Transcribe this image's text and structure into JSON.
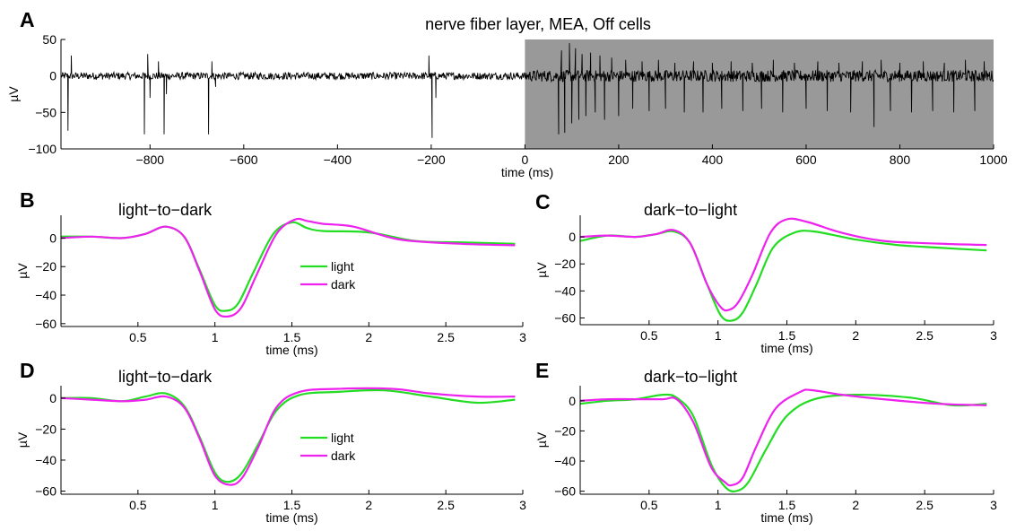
{
  "figure": {
    "chart_data": [
      {
        "panel": "A",
        "type": "line",
        "title": "nerve fiber layer, MEA, Off cells",
        "xlabel": "time (ms)",
        "ylabel": "µV",
        "xlim": [
          -990,
          1000
        ],
        "ylim": [
          -100,
          50
        ],
        "xticks": [
          -800,
          -600,
          -400,
          -200,
          0,
          200,
          400,
          600,
          800,
          1000
        ],
        "yticks": [
          50,
          0,
          -50,
          -100
        ],
        "xtick_labels": [
          "−800",
          "−600",
          "−400",
          "−200",
          "0",
          "200",
          "400",
          "600",
          "800",
          "1000"
        ],
        "ytick_labels": [
          "50",
          "0",
          "−50",
          "−100"
        ],
        "shaded_region": {
          "x": [
            0,
            1000
          ],
          "color": "#999999"
        },
        "line_color": "#000000",
        "noise_amplitude_pre": 5,
        "noise_amplitude_post": 8,
        "spikes": [
          {
            "x": -975,
            "y": -75
          },
          {
            "x": -968,
            "y": 28
          },
          {
            "x": -812,
            "y": -80
          },
          {
            "x": -805,
            "y": 30
          },
          {
            "x": -800,
            "y": -30
          },
          {
            "x": -770,
            "y": -80
          },
          {
            "x": -765,
            "y": -25
          },
          {
            "x": -782,
            "y": 20
          },
          {
            "x": -675,
            "y": -80
          },
          {
            "x": -668,
            "y": 20
          },
          {
            "x": -660,
            "y": -15
          },
          {
            "x": -198,
            "y": -85
          },
          {
            "x": -205,
            "y": 28
          },
          {
            "x": -190,
            "y": -30
          },
          {
            "x": 72,
            "y": -80
          },
          {
            "x": 78,
            "y": 35
          },
          {
            "x": 85,
            "y": -78
          },
          {
            "x": 95,
            "y": 45
          },
          {
            "x": 100,
            "y": -65
          },
          {
            "x": 108,
            "y": 38
          },
          {
            "x": 115,
            "y": -60
          },
          {
            "x": 122,
            "y": 30
          },
          {
            "x": 130,
            "y": -55
          },
          {
            "x": 140,
            "y": 32
          },
          {
            "x": 150,
            "y": -50
          },
          {
            "x": 160,
            "y": 28
          },
          {
            "x": 170,
            "y": -60
          },
          {
            "x": 185,
            "y": 25
          },
          {
            "x": 200,
            "y": -55
          },
          {
            "x": 215,
            "y": 22
          },
          {
            "x": 230,
            "y": -45
          },
          {
            "x": 250,
            "y": 20
          },
          {
            "x": 265,
            "y": -48
          },
          {
            "x": 285,
            "y": 22
          },
          {
            "x": 300,
            "y": -45
          },
          {
            "x": 320,
            "y": 18
          },
          {
            "x": 340,
            "y": -50
          },
          {
            "x": 360,
            "y": 20
          },
          {
            "x": 380,
            "y": -50
          },
          {
            "x": 400,
            "y": 18
          },
          {
            "x": 420,
            "y": -45
          },
          {
            "x": 440,
            "y": 20
          },
          {
            "x": 465,
            "y": -48
          },
          {
            "x": 485,
            "y": 18
          },
          {
            "x": 505,
            "y": -45
          },
          {
            "x": 530,
            "y": 22
          },
          {
            "x": 550,
            "y": -50
          },
          {
            "x": 575,
            "y": 18
          },
          {
            "x": 600,
            "y": -45
          },
          {
            "x": 625,
            "y": 20
          },
          {
            "x": 645,
            "y": -48
          },
          {
            "x": 670,
            "y": 18
          },
          {
            "x": 695,
            "y": -50
          },
          {
            "x": 720,
            "y": 20
          },
          {
            "x": 745,
            "y": -70
          },
          {
            "x": 760,
            "y": 22
          },
          {
            "x": 780,
            "y": -48
          },
          {
            "x": 800,
            "y": 18
          },
          {
            "x": 825,
            "y": -50
          },
          {
            "x": 850,
            "y": 20
          },
          {
            "x": 870,
            "y": -48
          },
          {
            "x": 895,
            "y": 18
          },
          {
            "x": 915,
            "y": -50
          },
          {
            "x": 940,
            "y": 22
          },
          {
            "x": 960,
            "y": -48
          },
          {
            "x": 980,
            "y": 20
          }
        ]
      },
      {
        "panel": "B",
        "type": "line",
        "title": "light−to−dark",
        "xlabel": "time (ms)",
        "ylabel": "µV",
        "xlim": [
          0,
          3
        ],
        "ylim": [
          -62,
          16
        ],
        "xticks": [
          0.5,
          1,
          1.5,
          2,
          2.5,
          3
        ],
        "xtick_labels": [
          "0.5",
          "1",
          "1.5",
          "2",
          "2.5",
          "3"
        ],
        "yticks": [
          0,
          -20,
          -40,
          -60
        ],
        "ytick_labels": [
          "0",
          "−20",
          "−40",
          "−60"
        ],
        "legend": {
          "entries": [
            "light",
            "dark"
          ],
          "placement": "center"
        },
        "series": [
          {
            "name": "light",
            "color": "#22dd22",
            "x": [
              0,
              0.2,
              0.4,
              0.55,
              0.68,
              0.8,
              0.9,
              1.0,
              1.07,
              1.15,
              1.25,
              1.38,
              1.5,
              1.6,
              1.7,
              2.0,
              2.3,
              2.6,
              2.95
            ],
            "y": [
              1,
              1,
              0,
              3,
              8,
              1,
              -22,
              -47,
              -51,
              -46,
              -24,
              3,
              11,
              7,
              5,
              4,
              -2,
              -3,
              -4
            ]
          },
          {
            "name": "dark",
            "color": "#ee22ee",
            "x": [
              0,
              0.2,
              0.4,
              0.55,
              0.68,
              0.8,
              0.9,
              1.0,
              1.08,
              1.17,
              1.27,
              1.4,
              1.52,
              1.6,
              1.7,
              1.9,
              2.2,
              2.6,
              2.95
            ],
            "y": [
              0,
              1,
              0,
              3,
              8,
              1,
              -23,
              -50,
              -55,
              -49,
              -26,
              3,
              13,
              12,
              10,
              8,
              -1,
              -4,
              -5
            ]
          }
        ]
      },
      {
        "panel": "C",
        "type": "line",
        "title": "dark−to−light",
        "xlabel": "time (ms)",
        "ylabel": "µV",
        "xlim": [
          0,
          3
        ],
        "ylim": [
          -65,
          16
        ],
        "xticks": [
          0.5,
          1,
          1.5,
          2,
          2.5,
          3
        ],
        "xtick_labels": [
          "0.5",
          "1",
          "1.5",
          "2",
          "2.5",
          "3"
        ],
        "yticks": [
          0,
          -20,
          -40,
          -60
        ],
        "ytick_labels": [
          "0",
          "−20",
          "−40",
          "−60"
        ],
        "series": [
          {
            "name": "light",
            "color": "#22dd22",
            "x": [
              0,
              0.2,
              0.4,
              0.55,
              0.68,
              0.8,
              0.92,
              1.02,
              1.1,
              1.18,
              1.28,
              1.4,
              1.55,
              1.7,
              2.0,
              2.3,
              2.6,
              2.95
            ],
            "y": [
              -3,
              1,
              0,
              2,
              4,
              -5,
              -35,
              -58,
              -62,
              -56,
              -35,
              -8,
              3,
              4,
              -2,
              -6,
              -8,
              -10
            ]
          },
          {
            "name": "dark",
            "color": "#ee22ee",
            "x": [
              0,
              0.2,
              0.4,
              0.55,
              0.68,
              0.8,
              0.92,
              1.02,
              1.08,
              1.15,
              1.25,
              1.38,
              1.5,
              1.65,
              1.9,
              2.2,
              2.6,
              2.95
            ],
            "y": [
              0,
              1,
              0,
              2,
              5,
              -5,
              -35,
              -52,
              -54,
              -48,
              -28,
              3,
              13,
              11,
              3,
              -3,
              -5,
              -6
            ]
          }
        ]
      },
      {
        "panel": "D",
        "type": "line",
        "title": "light−to−dark",
        "xlabel": "time (ms)",
        "ylabel": "µV",
        "xlim": [
          0,
          3
        ],
        "ylim": [
          -62,
          8
        ],
        "xticks": [
          0.5,
          1,
          1.5,
          2,
          2.5,
          3
        ],
        "xtick_labels": [
          "0.5",
          "1",
          "1.5",
          "2",
          "2.5",
          "3"
        ],
        "yticks": [
          0,
          -20,
          -40,
          -60
        ],
        "ytick_labels": [
          "0",
          "−20",
          "−40",
          "−60"
        ],
        "legend": {
          "entries": [
            "light",
            "dark"
          ],
          "placement": "center"
        },
        "series": [
          {
            "name": "light",
            "color": "#22dd22",
            "x": [
              0,
              0.2,
              0.4,
              0.55,
              0.68,
              0.8,
              0.9,
              1.0,
              1.08,
              1.17,
              1.28,
              1.4,
              1.55,
              1.8,
              2.1,
              2.4,
              2.7,
              2.95
            ],
            "y": [
              0,
              0,
              -2,
              1,
              3,
              -5,
              -25,
              -48,
              -54,
              -49,
              -30,
              -8,
              2,
              4,
              5,
              1,
              -3,
              -1
            ]
          },
          {
            "name": "dark",
            "color": "#ee22ee",
            "x": [
              0,
              0.2,
              0.4,
              0.55,
              0.68,
              0.8,
              0.9,
              1.0,
              1.1,
              1.18,
              1.28,
              1.4,
              1.55,
              1.8,
              2.15,
              2.4,
              2.7,
              2.95
            ],
            "y": [
              0,
              -1,
              -2,
              -1,
              1,
              -6,
              -26,
              -50,
              -56,
              -51,
              -32,
              -6,
              4,
              6,
              6,
              3,
              1,
              1
            ]
          }
        ]
      },
      {
        "panel": "E",
        "type": "line",
        "title": "dark−to−light",
        "xlabel": "time (ms)",
        "ylabel": "µV",
        "xlim": [
          0,
          3
        ],
        "ylim": [
          -62,
          10
        ],
        "xticks": [
          0.5,
          1,
          1.5,
          2,
          2.5,
          3
        ],
        "xtick_labels": [
          "0.5",
          "1",
          "1.5",
          "2",
          "2.5",
          "3"
        ],
        "yticks": [
          0,
          -20,
          -40,
          -60
        ],
        "ytick_labels": [
          "0",
          "−20",
          "−40",
          "−60"
        ],
        "series": [
          {
            "name": "light",
            "color": "#22dd22",
            "x": [
              0,
              0.2,
              0.4,
              0.6,
              0.7,
              0.82,
              0.95,
              1.05,
              1.13,
              1.22,
              1.35,
              1.5,
              1.7,
              2.0,
              2.4,
              2.7,
              2.95
            ],
            "y": [
              -2,
              0,
              1,
              4,
              2,
              -10,
              -42,
              -57,
              -60,
              -54,
              -32,
              -10,
              1,
              4,
              2,
              -3,
              -2
            ]
          },
          {
            "name": "dark",
            "color": "#ee22ee",
            "x": [
              0,
              0.2,
              0.4,
              0.6,
              0.7,
              0.82,
              0.95,
              1.05,
              1.1,
              1.18,
              1.28,
              1.42,
              1.6,
              1.68,
              1.9,
              2.2,
              2.6,
              2.95
            ],
            "y": [
              0,
              1,
              1,
              1,
              1,
              -14,
              -44,
              -54,
              -56,
              -51,
              -30,
              -5,
              6,
              7,
              4,
              1,
              -2,
              -3
            ]
          }
        ]
      }
    ]
  }
}
